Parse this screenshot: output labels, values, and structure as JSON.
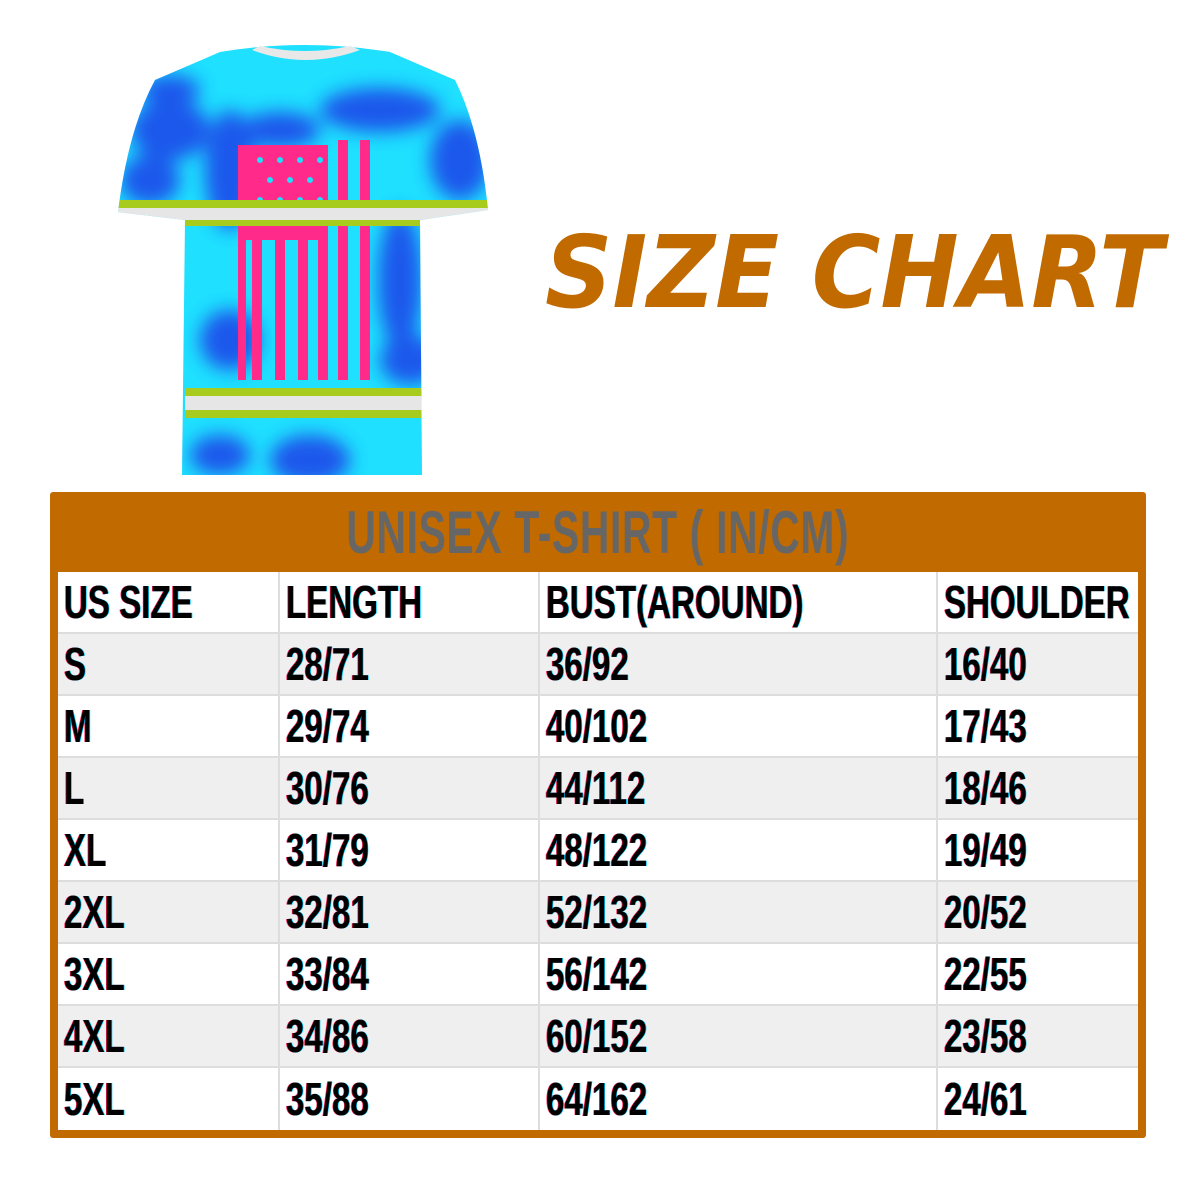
{
  "title": "SIZE CHART",
  "colors": {
    "accent": "#c06a00",
    "caption_text": "#666666",
    "shirt_base": "#1fe0ff",
    "shirt_dye": "#1c3fe8",
    "flag": "#ff2a8a",
    "reflective_green": "#a8cc1e",
    "reflective_silver": "#e6e6e6"
  },
  "product_image": {
    "icon": "tie-dye-tshirt-with-american-flag"
  },
  "table": {
    "caption": "UNISEX T-SHIRT ( IN/CM)",
    "headers": [
      "US SIZE",
      "LENGTH",
      "BUST(AROUND)",
      "SHOULDER"
    ],
    "rows": [
      [
        "S",
        "28/71",
        "36/92",
        "16/40"
      ],
      [
        "M",
        "29/74",
        "40/102",
        "17/43"
      ],
      [
        "L",
        "30/76",
        "44/112",
        "18/46"
      ],
      [
        "XL",
        "31/79",
        "48/122",
        "19/49"
      ],
      [
        "2XL",
        "32/81",
        "52/132",
        "20/52"
      ],
      [
        "3XL",
        "33/84",
        "56/142",
        "22/55"
      ],
      [
        "4XL",
        "34/86",
        "60/152",
        "23/58"
      ],
      [
        "5XL",
        "35/88",
        "64/162",
        "24/61"
      ]
    ]
  }
}
